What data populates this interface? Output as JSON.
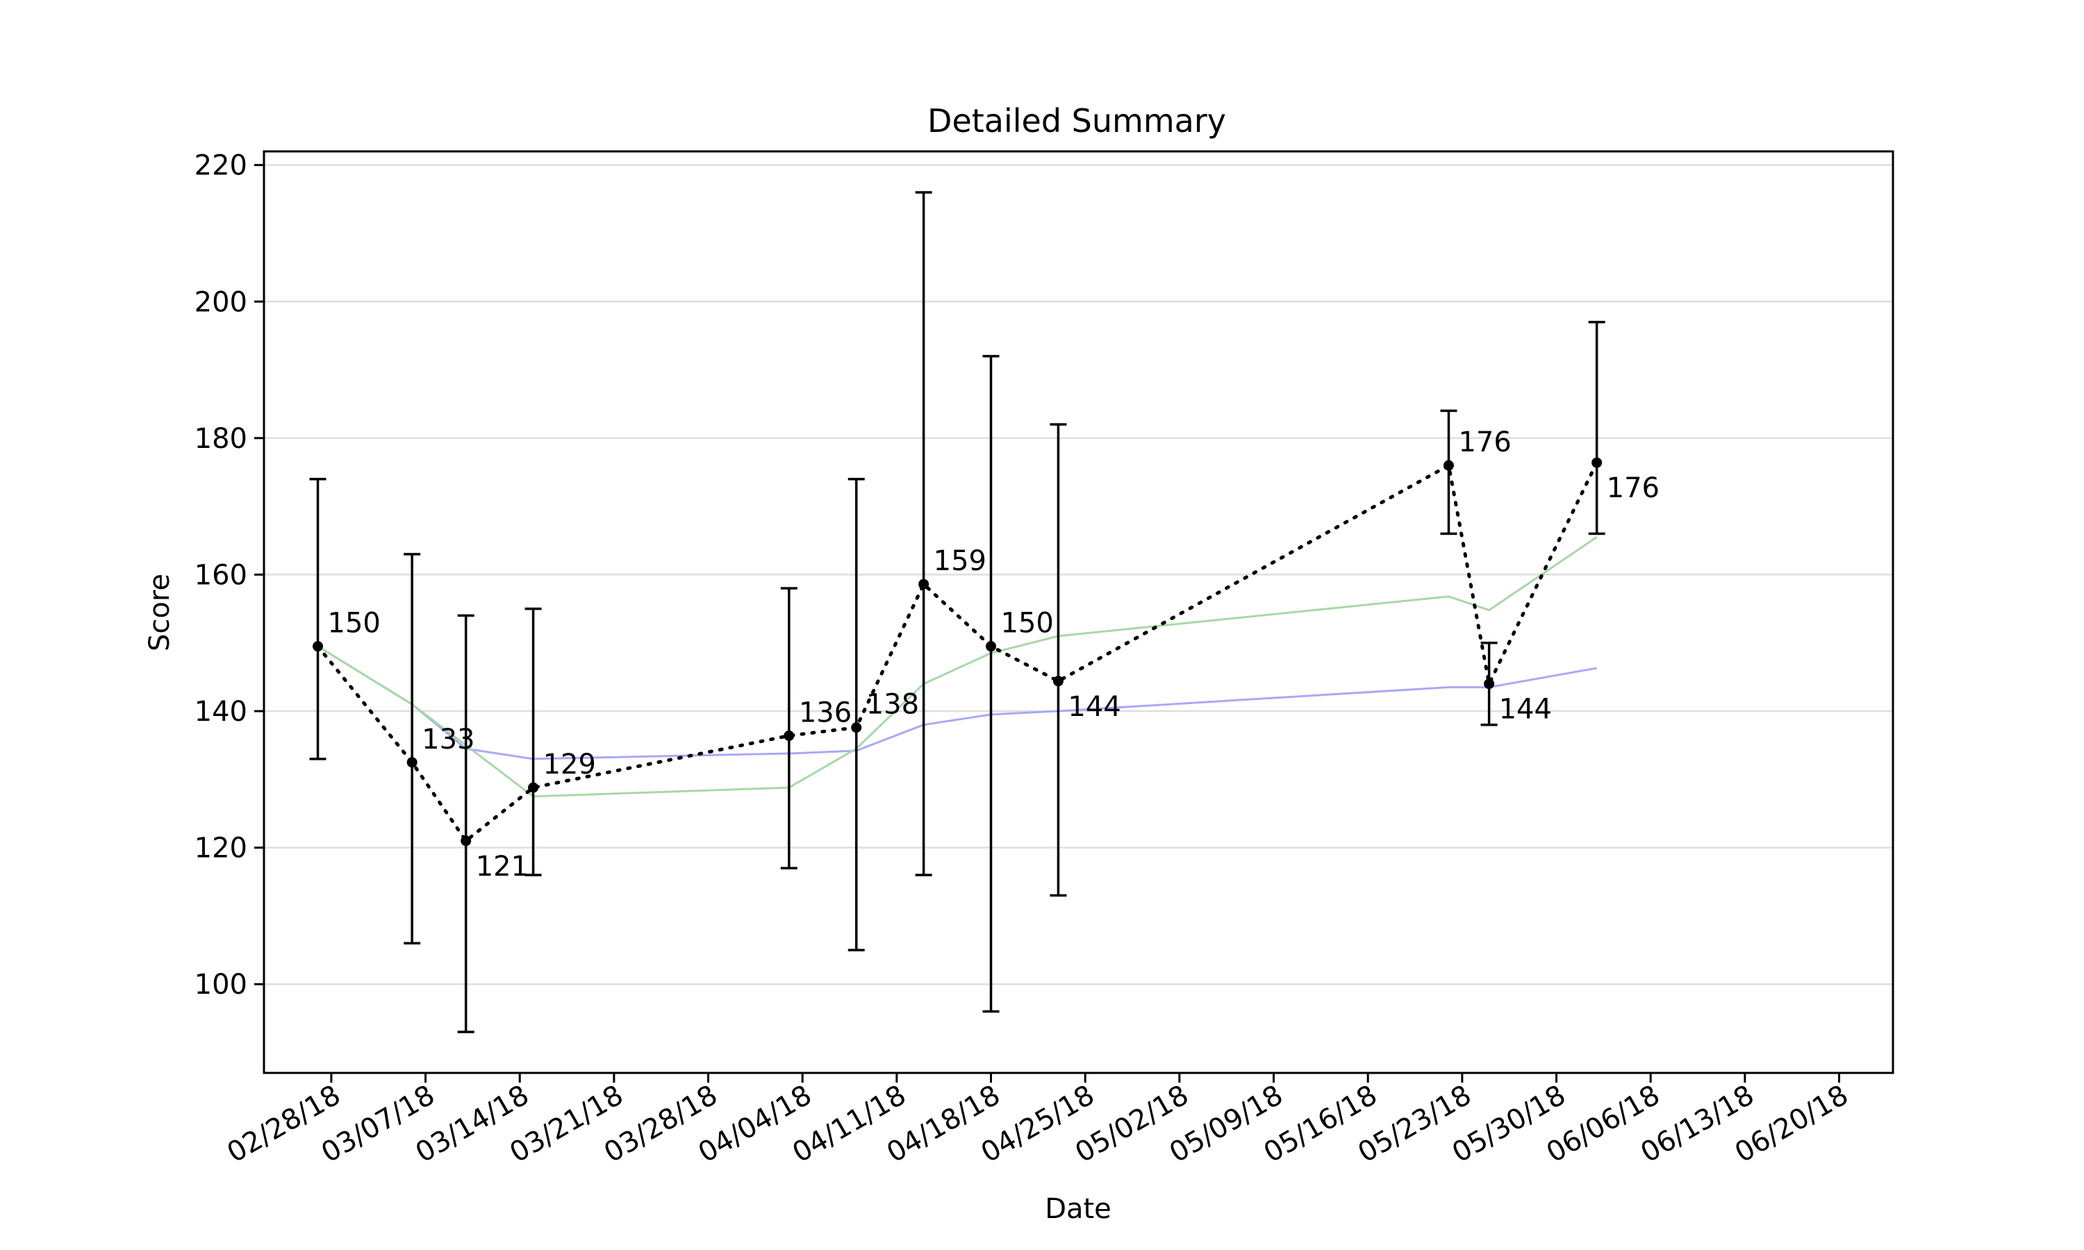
{
  "chart_data": {
    "type": "line",
    "title": "Detailed Summary",
    "xlabel": "Date",
    "ylabel": "Score",
    "ylim": [
      87,
      222
    ],
    "xlim": [
      "2018-02-23",
      "2018-06-24"
    ],
    "yticks": [
      100,
      120,
      140,
      160,
      180,
      200,
      220
    ],
    "xticks": [
      "2018-02-28",
      "2018-03-07",
      "2018-03-14",
      "2018-03-21",
      "2018-03-28",
      "2018-04-04",
      "2018-04-11",
      "2018-04-18",
      "2018-04-25",
      "2018-05-02",
      "2018-05-09",
      "2018-05-16",
      "2018-05-23",
      "2018-05-30",
      "2018-06-06",
      "2018-06-13",
      "2018-06-20"
    ],
    "xtick_labels": [
      "02/28/18",
      "03/07/18",
      "03/14/18",
      "03/21/18",
      "03/28/18",
      "04/04/18",
      "04/11/18",
      "04/18/18",
      "04/25/18",
      "05/02/18",
      "05/09/18",
      "05/16/18",
      "05/23/18",
      "05/30/18",
      "06/06/18",
      "06/13/18",
      "06/20/18"
    ],
    "grid": "horizontal",
    "series": [
      {
        "style": "dotted-black-markers",
        "color": "#000000",
        "x": [
          "2018-02-27",
          "2018-03-06",
          "2018-03-10",
          "2018-03-15",
          "2018-04-03",
          "2018-04-08",
          "2018-04-13",
          "2018-04-18",
          "2018-04-23",
          "2018-05-22",
          "2018-05-25",
          "2018-06-02"
        ],
        "y": [
          149.5,
          132.5,
          121,
          128.8,
          136.4,
          137.6,
          158.6,
          149.5,
          144.4,
          176,
          144,
          176.4
        ],
        "labels": [
          "150",
          "133",
          "121",
          "129",
          "136",
          "138",
          "159",
          "150",
          "144",
          "176",
          "144",
          "176"
        ],
        "err_low": [
          133,
          106,
          93,
          116,
          117,
          105,
          116,
          96,
          113,
          166,
          138,
          166
        ],
        "err_high": [
          174,
          163,
          154,
          155,
          158,
          174,
          216,
          192,
          182,
          184,
          150,
          197
        ]
      },
      {
        "style": "thin-line",
        "color": "#a9a9f5",
        "x": [
          "2018-02-27",
          "2018-03-06",
          "2018-03-10",
          "2018-03-15",
          "2018-04-03",
          "2018-04-08",
          "2018-04-13",
          "2018-04-18",
          "2018-04-23",
          "2018-05-22",
          "2018-05-25",
          "2018-06-02"
        ],
        "y": [
          149.5,
          141,
          134.5,
          133,
          133.8,
          134.2,
          138,
          139.5,
          140,
          143.5,
          143.5,
          146.3
        ]
      },
      {
        "style": "thin-line",
        "color": "#a8d8a8",
        "x": [
          "2018-02-27",
          "2018-03-06",
          "2018-03-10",
          "2018-03-15",
          "2018-04-03",
          "2018-04-08",
          "2018-04-13",
          "2018-04-18",
          "2018-04-23",
          "2018-05-22",
          "2018-05-25",
          "2018-06-02"
        ],
        "y": [
          149.5,
          141,
          135,
          127.5,
          128.8,
          134.5,
          144,
          148.5,
          151,
          156.8,
          154.8,
          165.5
        ]
      }
    ]
  }
}
